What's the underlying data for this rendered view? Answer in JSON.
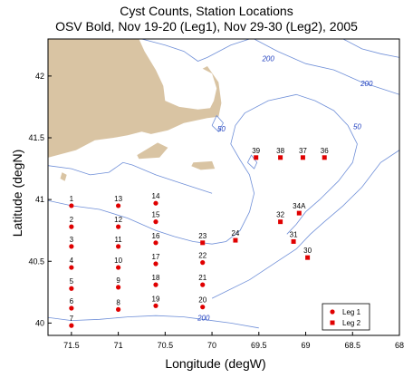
{
  "title_line1": "Cyst Counts, Station Locations",
  "title_line2": "OSV Bold, Nov 19-20 (Leg1), Nov 29-30 (Leg2), 2005",
  "xlabel": "Longitude (degW)",
  "ylabel": "Latitude (degN)",
  "map": {
    "xlim": [
      -71.75,
      -68.0
    ],
    "ylim": [
      39.9,
      42.3
    ],
    "x_ticks": [
      -71.5,
      -71.0,
      -70.5,
      -70.0,
      -69.5,
      -69.0,
      -68.5,
      -68.0
    ],
    "x_tick_labels": [
      "71.5",
      "71",
      "70.5",
      "70",
      "69.5",
      "69",
      "68.5",
      "68"
    ],
    "y_ticks": [
      40.0,
      40.5,
      41.0,
      41.5,
      42.0
    ],
    "y_tick_labels": [
      "40",
      "40.5",
      "41",
      "41.5",
      "42"
    ],
    "land_color": "#d9c4a3",
    "contour_color": "#6f8fd8",
    "marker_color": "#e00000",
    "contour_labels": [
      {
        "text": "200",
        "lon": -69.4,
        "lat": 42.12
      },
      {
        "text": "200",
        "lon": -68.35,
        "lat": 41.92
      },
      {
        "text": "50",
        "lon": -68.45,
        "lat": 41.57
      },
      {
        "text": "50",
        "lon": -69.9,
        "lat": 41.55
      },
      {
        "text": "200",
        "lon": -70.09,
        "lat": 40.02
      }
    ]
  },
  "legend": {
    "position": "bottom-right",
    "items": [
      {
        "label": "Leg 1",
        "marker": "circle"
      },
      {
        "label": "Leg 2",
        "marker": "square"
      }
    ]
  },
  "chart_data": {
    "type": "scatter",
    "xlabel": "Longitude (degW)",
    "ylabel": "Latitude (degN)",
    "series": [
      {
        "name": "Leg 1",
        "marker": "circle",
        "points": [
          {
            "station": "1",
            "lon": -71.5,
            "lat": 40.95
          },
          {
            "station": "2",
            "lon": -71.5,
            "lat": 40.78
          },
          {
            "station": "3",
            "lon": -71.5,
            "lat": 40.62
          },
          {
            "station": "4",
            "lon": -71.5,
            "lat": 40.45
          },
          {
            "station": "5",
            "lon": -71.5,
            "lat": 40.28
          },
          {
            "station": "6",
            "lon": -71.5,
            "lat": 40.12
          },
          {
            "station": "7",
            "lon": -71.5,
            "lat": 39.98
          },
          {
            "station": "8",
            "lon": -71.0,
            "lat": 40.11
          },
          {
            "station": "9",
            "lon": -71.0,
            "lat": 40.29
          },
          {
            "station": "10",
            "lon": -71.0,
            "lat": 40.45
          },
          {
            "station": "11",
            "lon": -71.0,
            "lat": 40.62
          },
          {
            "station": "12",
            "lon": -71.0,
            "lat": 40.78
          },
          {
            "station": "13",
            "lon": -71.0,
            "lat": 40.95
          },
          {
            "station": "14",
            "lon": -70.6,
            "lat": 40.97
          },
          {
            "station": "15",
            "lon": -70.6,
            "lat": 40.82
          },
          {
            "station": "16",
            "lon": -70.6,
            "lat": 40.65
          },
          {
            "station": "17",
            "lon": -70.6,
            "lat": 40.48
          },
          {
            "station": "18",
            "lon": -70.6,
            "lat": 40.31
          },
          {
            "station": "19",
            "lon": -70.6,
            "lat": 40.14
          },
          {
            "station": "20",
            "lon": -70.1,
            "lat": 40.13
          },
          {
            "station": "21",
            "lon": -70.1,
            "lat": 40.31
          },
          {
            "station": "22",
            "lon": -70.1,
            "lat": 40.49
          }
        ]
      },
      {
        "name": "Leg 2",
        "marker": "square",
        "points": [
          {
            "station": "23",
            "lon": -70.1,
            "lat": 40.65
          },
          {
            "station": "24",
            "lon": -69.75,
            "lat": 40.67
          },
          {
            "station": "30",
            "lon": -68.98,
            "lat": 40.53
          },
          {
            "station": "31",
            "lon": -69.13,
            "lat": 40.66
          },
          {
            "station": "32",
            "lon": -69.27,
            "lat": 40.82
          },
          {
            "station": "34A",
            "lon": -69.07,
            "lat": 40.89
          },
          {
            "station": "36",
            "lon": -68.8,
            "lat": 41.34
          },
          {
            "station": "37",
            "lon": -69.03,
            "lat": 41.34
          },
          {
            "station": "38",
            "lon": -69.27,
            "lat": 41.34
          },
          {
            "station": "39",
            "lon": -69.53,
            "lat": 41.34
          }
        ]
      }
    ]
  }
}
